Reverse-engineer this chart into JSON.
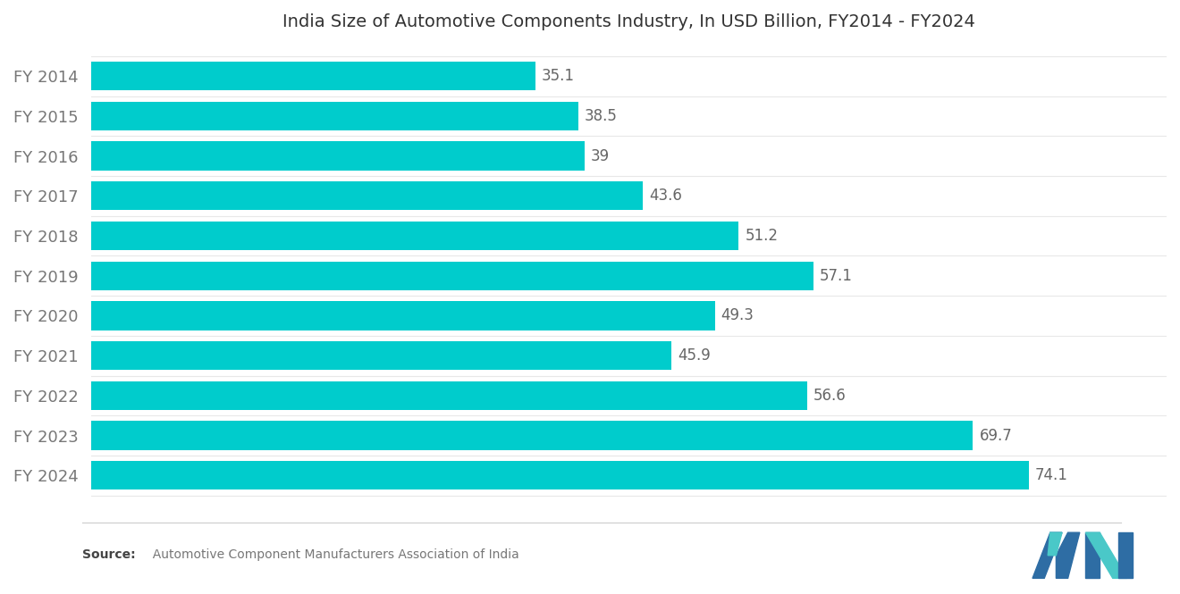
{
  "title": "India Size of Automotive Components Industry, In USD Billion, FY2014 - FY2024",
  "categories": [
    "FY 2014",
    "FY 2015",
    "FY 2016",
    "FY 2017",
    "FY 2018",
    "FY 2019",
    "FY 2020",
    "FY 2021",
    "FY 2022",
    "FY 2023",
    "FY 2024"
  ],
  "values": [
    35.1,
    38.5,
    39.0,
    43.6,
    51.2,
    57.1,
    49.3,
    45.9,
    56.6,
    69.7,
    74.1
  ],
  "bar_color": "#00CCCC",
  "background_color": "#FFFFFF",
  "title_fontsize": 14,
  "label_fontsize": 13,
  "value_fontsize": 12,
  "source_bold": "Source:",
  "source_normal": "  Automotive Component Manufacturers Association of India",
  "xlim": [
    0,
    85
  ],
  "bar_height": 0.72,
  "label_color": "#777777",
  "value_color": "#666666",
  "divider_color": "#E8E8E8",
  "logo_m_color": "#4a90b8",
  "logo_n_color": "#00bcd4"
}
